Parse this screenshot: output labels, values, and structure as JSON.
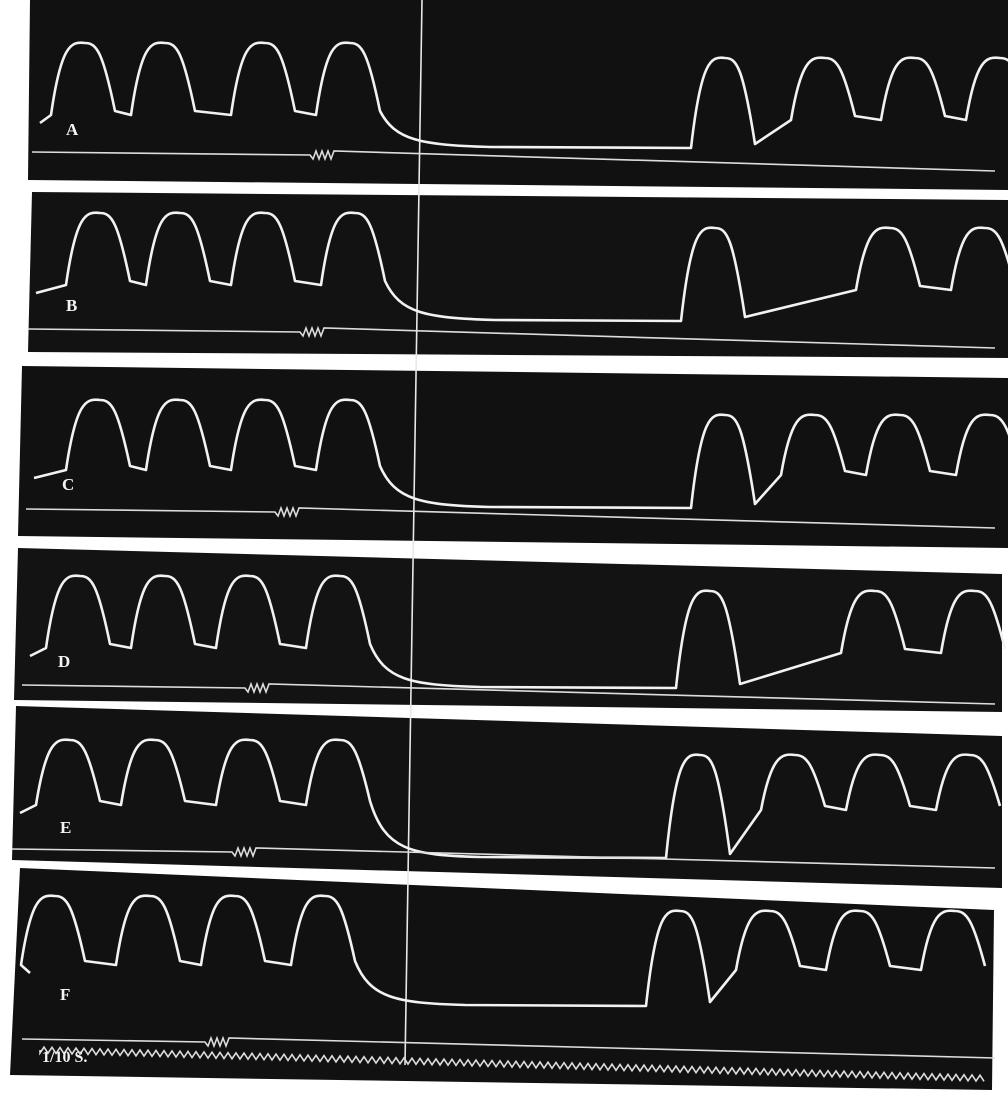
{
  "panels": [
    {
      "label": "A"
    },
    {
      "label": "B"
    },
    {
      "label": "C"
    },
    {
      "label": "D"
    },
    {
      "label": "E"
    },
    {
      "label": "F"
    }
  ],
  "time_marker": "1/10 S."
}
